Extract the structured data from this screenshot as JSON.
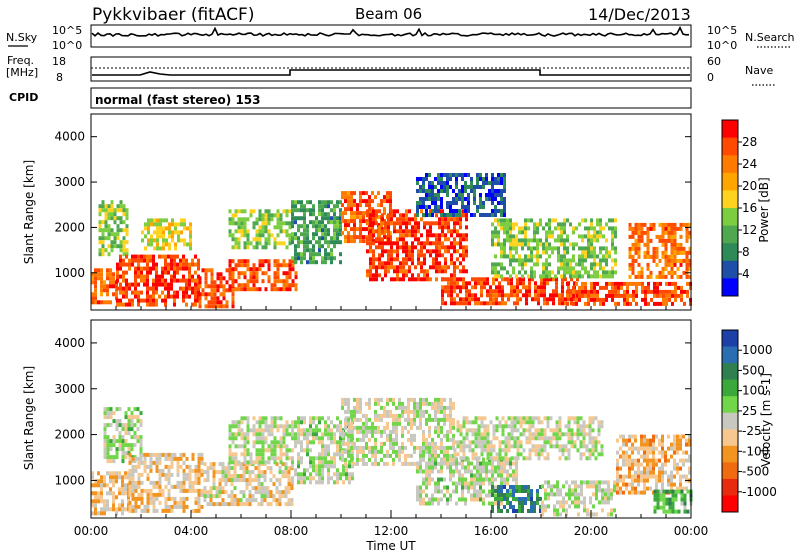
{
  "header": {
    "station": "Pykkvibaer (fitACF)",
    "beam": "Beam 06",
    "date": "14/Dec/2013"
  },
  "top_panels": {
    "nsky_label": "N.Sky",
    "nsky_ticks": [
      "10^5",
      "10^0"
    ],
    "nsearch_label": "N.Search",
    "nsearch_ticks": [
      "10^5",
      "10^0"
    ],
    "freq_label_1": "Freq.",
    "freq_label_2": "[MHz]",
    "freq_ticks": [
      "18",
      "8"
    ],
    "nave_label": "Nave",
    "nave_ticks": [
      "60",
      "0"
    ],
    "cpid_label": "CPID",
    "cpid_text": "normal (fast stereo) 153"
  },
  "colors": {
    "power_scale": [
      "#0000ff",
      "#1f4ea8",
      "#2e8b57",
      "#4fa84f",
      "#7ccd3f",
      "#ffd21f",
      "#ffa500",
      "#ff7a00",
      "#ff4a00",
      "#ff0000"
    ],
    "velocity_scale": [
      "#1c3fa8",
      "#2a6db0",
      "#2f7f4f",
      "#3aa83a",
      "#72d64a",
      "#c8c8c0",
      "#f6c890",
      "#f39420",
      "#f06a10",
      "#e82a10",
      "#ff0000"
    ]
  },
  "chart_data": [
    {
      "type": "heatmap",
      "name": "power",
      "ylabel": "Slant Range [km]",
      "y_ticks": [
        "4000",
        "3000",
        "2000",
        "1000"
      ],
      "ylim": [
        180,
        4500
      ],
      "xlim_hours": [
        0,
        24
      ],
      "colorbar_label": "Power [dB]",
      "colorbar_ticks": [
        "28",
        "24",
        "20",
        "16",
        "12",
        "8",
        "4"
      ],
      "colorbar_range": [
        0,
        32
      ],
      "segments": [
        {
          "t0": 0.0,
          "t1": 1.0,
          "r0": 380,
          "r1": 1100,
          "v": 26
        },
        {
          "t0": 0.3,
          "t1": 1.5,
          "r0": 1400,
          "r1": 2600,
          "v": 14
        },
        {
          "t0": 1.0,
          "t1": 4.3,
          "r0": 300,
          "r1": 1400,
          "v": 28
        },
        {
          "t0": 2.0,
          "t1": 4.0,
          "r0": 1500,
          "r1": 2200,
          "v": 17
        },
        {
          "t0": 4.3,
          "t1": 5.7,
          "r0": 300,
          "r1": 1100,
          "v": 27
        },
        {
          "t0": 5.5,
          "t1": 8.2,
          "r0": 600,
          "r1": 1300,
          "v": 27
        },
        {
          "t0": 5.5,
          "t1": 8.0,
          "r0": 1600,
          "r1": 2400,
          "v": 14
        },
        {
          "t0": 8.0,
          "t1": 10.0,
          "r0": 1200,
          "r1": 2600,
          "v": 10
        },
        {
          "t0": 10.0,
          "t1": 12.0,
          "r0": 1700,
          "r1": 2800,
          "v": 26
        },
        {
          "t0": 11.0,
          "t1": 15.0,
          "r0": 900,
          "r1": 2400,
          "v": 28
        },
        {
          "t0": 13.0,
          "t1": 16.5,
          "r0": 2300,
          "r1": 3200,
          "v": 5
        },
        {
          "t0": 14.0,
          "t1": 19.5,
          "r0": 300,
          "r1": 900,
          "v": 28
        },
        {
          "t0": 16.0,
          "t1": 21.0,
          "r0": 900,
          "r1": 2200,
          "v": 14
        },
        {
          "t0": 19.0,
          "t1": 24.0,
          "r0": 300,
          "r1": 800,
          "v": 27
        },
        {
          "t0": 21.5,
          "t1": 24.0,
          "r0": 900,
          "r1": 2100,
          "v": 25
        }
      ]
    },
    {
      "type": "heatmap",
      "name": "velocity",
      "ylabel": "Slant Range [km]",
      "y_ticks": [
        "4000",
        "3000",
        "2000",
        "1000"
      ],
      "ylim": [
        180,
        4500
      ],
      "xlim_hours": [
        0,
        24
      ],
      "xlabel": "Time UT",
      "x_ticks": [
        "00:00",
        "04:00",
        "08:00",
        "12:00",
        "16:00",
        "20:00",
        "00:00"
      ],
      "colorbar_label": "Velocity [m s-1]",
      "colorbar_ticks": [
        "1000",
        "500",
        "100",
        "25",
        "-25",
        "-100",
        "-500",
        "-1000"
      ],
      "colorbar_range": [
        -1200,
        1200
      ],
      "segments": [
        {
          "t0": 0.0,
          "t1": 1.5,
          "r0": 300,
          "r1": 1200,
          "v": -250
        },
        {
          "t0": 0.5,
          "t1": 2.0,
          "r0": 1400,
          "r1": 2600,
          "v": 80
        },
        {
          "t0": 1.5,
          "t1": 4.5,
          "r0": 300,
          "r1": 1600,
          "v": -200
        },
        {
          "t0": 4.5,
          "t1": 8.0,
          "r0": 500,
          "r1": 1400,
          "v": -150
        },
        {
          "t0": 5.5,
          "t1": 8.0,
          "r0": 1400,
          "r1": 2400,
          "v": 10
        },
        {
          "t0": 8.0,
          "t1": 10.5,
          "r0": 1000,
          "r1": 2400,
          "v": 60
        },
        {
          "t0": 10.0,
          "t1": 14.5,
          "r0": 1400,
          "r1": 2800,
          "v": 0
        },
        {
          "t0": 13.0,
          "t1": 17.0,
          "r0": 500,
          "r1": 1500,
          "v": 60
        },
        {
          "t0": 16.0,
          "t1": 18.0,
          "r0": 300,
          "r1": 900,
          "v": 700
        },
        {
          "t0": 14.5,
          "t1": 20.5,
          "r0": 1500,
          "r1": 2400,
          "v": 5
        },
        {
          "t0": 18.0,
          "t1": 21.0,
          "r0": 300,
          "r1": 1000,
          "v": 20
        },
        {
          "t0": 21.0,
          "t1": 24.0,
          "r0": 700,
          "r1": 2000,
          "v": -300
        },
        {
          "t0": 22.5,
          "t1": 24.0,
          "r0": 300,
          "r1": 800,
          "v": 300
        }
      ]
    }
  ]
}
